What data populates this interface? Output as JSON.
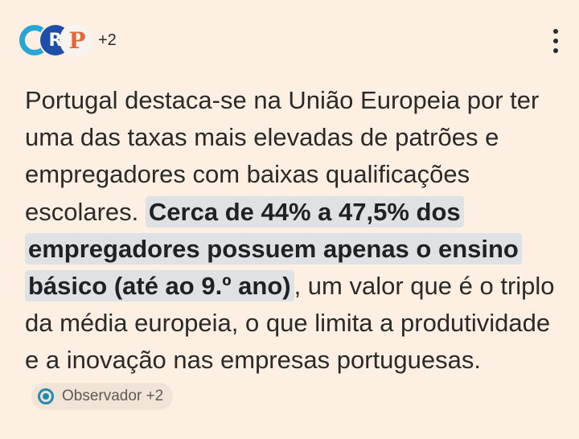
{
  "sources": {
    "logos": [
      {
        "icon": "observador-logo-icon",
        "letter": "O"
      },
      {
        "icon": "r-source-logo-icon",
        "letter": "R"
      },
      {
        "icon": "p-source-logo-icon",
        "letter": "P"
      }
    ],
    "more_count": "+2"
  },
  "answer": {
    "text_before": "Portugal destaca-se na União Europeia por ter uma das taxas mais elevadas de patrões e empregadores com baixas qualificações escolares.",
    "highlight": "Cerca de 44% a 47,5% dos empregadores possuem apenas o ensino básico (até ao 9.º ano)",
    "text_after": ", um valor que é o triplo da média europeia, o que limita a produtividade e a inovação nas empresas portuguesas.",
    "citation": {
      "icon": "source-dot-icon",
      "label": "Observador +2"
    }
  },
  "colors": {
    "background": "#fdf0e3",
    "highlight": "#dfe2e4",
    "chip_background": "#f1e4d7",
    "accent_blue": "#2aa6d6",
    "accent_orange": "#e2683a"
  }
}
